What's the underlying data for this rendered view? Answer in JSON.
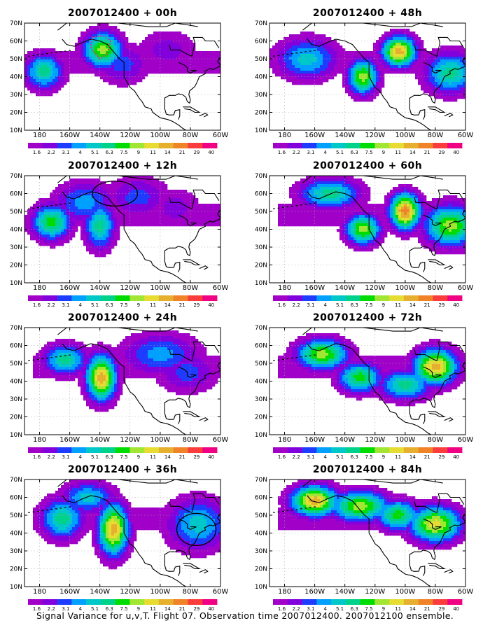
{
  "figure": {
    "caption": "Signal Variance for u,v,T. Flight 07. Observation time 2007012400. 2007012100 ensemble."
  },
  "colors": {
    "levels": [
      "#a000c8",
      "#8200dc",
      "#1e3cff",
      "#00a0ff",
      "#00c8c8",
      "#00d28c",
      "#00dc00",
      "#a0e632",
      "#e6dc32",
      "#e6af2d",
      "#f08228",
      "#fa3c3c",
      "#f00082"
    ],
    "coast": "#000000",
    "grid": "#aaaaaa"
  },
  "chart_data": {
    "type": "heatmap",
    "variable": "Signal Variance for u,v,T",
    "colorbar_levels": [
      "1.6",
      "2.2",
      "3.1",
      "4",
      "5.1",
      "6.3",
      "7.5",
      "9",
      "11",
      "14",
      "21",
      "29",
      "40"
    ],
    "lat_labels": [
      "70N",
      "60N",
      "50N",
      "40N",
      "30N",
      "20N",
      "10N"
    ],
    "lon_labels": [
      "180",
      "160W",
      "140W",
      "120W",
      "100W",
      "80W",
      "60W"
    ],
    "lon_range": [
      -190,
      -60
    ],
    "lat_range": [
      10,
      70
    ],
    "panels": [
      {
        "title": "2007012400 + 00h",
        "lead_hours": 0,
        "blobs": [
          [
            -177,
            43,
            9,
            7,
            4
          ],
          [
            -138,
            55,
            9,
            7,
            6
          ],
          [
            -125,
            47,
            12,
            8,
            1
          ],
          [
            -95,
            55,
            14,
            8,
            0
          ]
        ],
        "circles": [],
        "dotted": [
          [
            -145,
            62
          ],
          [
            -138,
            63
          ],
          [
            -133,
            60
          ],
          [
            -135,
            53
          ],
          [
            -140,
            50
          ],
          [
            -146,
            56
          ]
        ]
      },
      {
        "title": "2007012400 + 12h",
        "lead_hours": 12,
        "blobs": [
          [
            -172,
            44,
            9,
            7,
            5
          ],
          [
            -150,
            55,
            14,
            8,
            2
          ],
          [
            -140,
            42,
            7,
            9,
            4
          ],
          [
            -115,
            58,
            14,
            8,
            1
          ],
          [
            -90,
            52,
            12,
            8,
            0
          ]
        ],
        "circles": [
          [
            -130,
            60,
            15,
            7
          ]
        ],
        "dotted": []
      },
      {
        "title": "2007012400 + 24h",
        "lead_hours": 24,
        "blobs": [
          [
            -163,
            52,
            10,
            6,
            4
          ],
          [
            -139,
            42,
            7,
            9,
            8
          ],
          [
            -100,
            55,
            18,
            8,
            2
          ],
          [
            -82,
            45,
            14,
            8,
            1
          ]
        ],
        "circles": [],
        "dotted": []
      },
      {
        "title": "2007012400 + 36h",
        "lead_hours": 36,
        "blobs": [
          [
            -165,
            48,
            10,
            8,
            4
          ],
          [
            -131,
            42,
            7,
            10,
            8
          ],
          [
            -148,
            60,
            12,
            6,
            3
          ],
          [
            -75,
            45,
            14,
            10,
            3
          ]
        ],
        "circles": [
          [
            -76,
            42,
            13,
            9
          ]
        ],
        "dotted": []
      },
      {
        "title": "2007012400 + 48h",
        "lead_hours": 48,
        "blobs": [
          [
            -104,
            54,
            8,
            6,
            8
          ],
          [
            -128,
            40,
            7,
            7,
            6
          ],
          [
            -165,
            50,
            14,
            8,
            3
          ],
          [
            -70,
            42,
            12,
            8,
            4
          ]
        ],
        "circles": [],
        "dotted": []
      },
      {
        "title": "2007012400 + 60h",
        "lead_hours": 60,
        "blobs": [
          [
            -100,
            50,
            7,
            7,
            9
          ],
          [
            -128,
            40,
            8,
            6,
            6
          ],
          [
            -70,
            42,
            12,
            8,
            6
          ],
          [
            -150,
            60,
            14,
            6,
            4
          ]
        ],
        "circles": [],
        "dotted": []
      },
      {
        "title": "2007012400 + 72h",
        "lead_hours": 72,
        "blobs": [
          [
            -80,
            48,
            10,
            7,
            8
          ],
          [
            -155,
            55,
            12,
            6,
            6
          ],
          [
            -130,
            42,
            10,
            6,
            5
          ],
          [
            -100,
            38,
            12,
            6,
            4
          ]
        ],
        "circles": [],
        "dotted": []
      },
      {
        "title": "2007012400 + 84h",
        "lead_hours": 84,
        "blobs": [
          [
            -160,
            58,
            11,
            6,
            8
          ],
          [
            -130,
            55,
            14,
            6,
            6
          ],
          [
            -80,
            45,
            12,
            7,
            7
          ],
          [
            -105,
            50,
            10,
            6,
            5
          ]
        ],
        "circles": [],
        "dotted": []
      }
    ]
  }
}
